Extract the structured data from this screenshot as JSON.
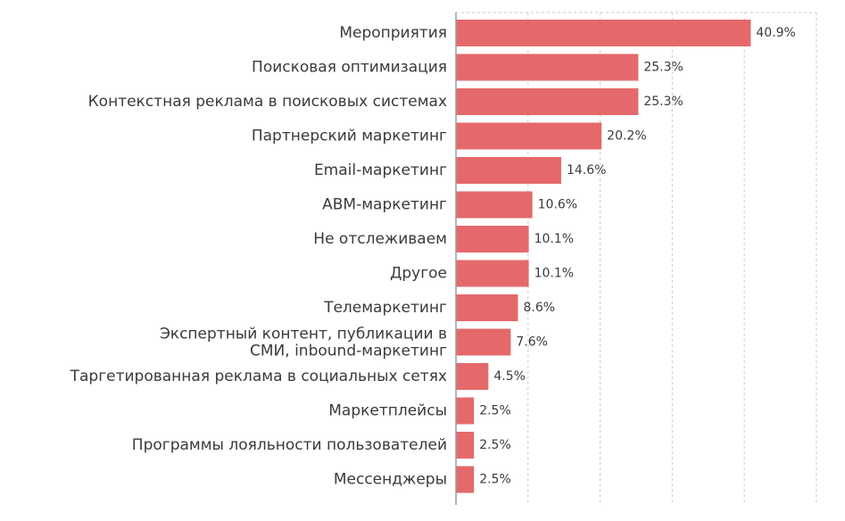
{
  "chart_data": {
    "type": "bar",
    "orientation": "horizontal",
    "title": "",
    "xlabel": "",
    "ylabel": "",
    "xlim": [
      0,
      50
    ],
    "grid": true,
    "bar_color": "#e5696b",
    "value_format": "{v}%",
    "categories": [
      "Мероприятия",
      "Поисковая оптимизация",
      "Контекстная реклама в поисковых системах",
      "Партнерский маркетинг",
      "Email-маркетинг",
      "ABM-маркетинг",
      "Не отслеживаем",
      "Другое",
      "Телемаркетинг",
      "Экспертный контент, публикации в СМИ, inbound-маркетинг",
      "Таргетированная реклама в социальных сетях",
      "Маркетплейсы",
      "Программы лояльности пользователей",
      "Мессенджеры"
    ],
    "values": [
      40.9,
      25.3,
      25.3,
      20.2,
      14.6,
      10.6,
      10.1,
      10.1,
      8.6,
      7.6,
      4.5,
      2.5,
      2.5,
      2.5
    ],
    "value_labels": [
      "40.9%",
      "25.3%",
      "25.3%",
      "20.2%",
      "14.6%",
      "10.6%",
      "10.1%",
      "10.1%",
      "8.6%",
      "7.6%",
      "4.5%",
      "2.5%",
      "2.5%",
      "2.5%"
    ]
  }
}
